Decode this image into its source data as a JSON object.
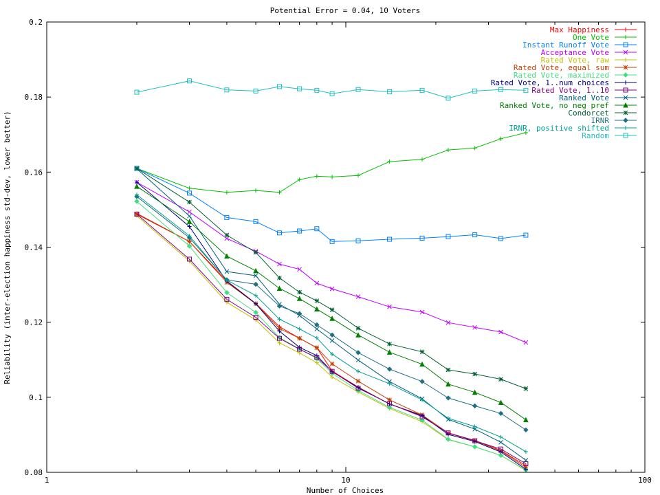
{
  "chart_data": {
    "type": "line",
    "title": "Potential Error = 0.04, 10 Voters",
    "xlabel": "Number of Choices",
    "ylabel": "Reliability (inter-election happiness std-dev, lower better)",
    "x_scale": "log",
    "xlim": [
      1,
      100
    ],
    "ylim": [
      0.08,
      0.2
    ],
    "x_ticks": [
      1,
      10,
      100
    ],
    "x_tick_labels": [
      "1",
      "10",
      "100"
    ],
    "y_ticks": [
      0.08,
      0.1,
      0.12,
      0.14,
      0.16,
      0.18,
      0.2
    ],
    "y_tick_labels": [
      "0.08",
      "0.1",
      "0.12",
      "0.14",
      "0.16",
      "0.18",
      "0.2"
    ],
    "grid": false,
    "legend_position": "top-right",
    "x": [
      2,
      3,
      4,
      5,
      6,
      7,
      8,
      9,
      11,
      14,
      18,
      22,
      27,
      33,
      40
    ],
    "series": [
      {
        "name": "Max Happiness",
        "color": "#ff0000",
        "marker": "plus",
        "values": [
          0.149,
          0.1415,
          0.131,
          0.125,
          0.1188,
          0.1157,
          0.1132,
          0.107,
          0.1027,
          0.0982,
          0.0952,
          0.0905,
          0.0885,
          0.0858,
          0.0818
        ]
      },
      {
        "name": "One Vote",
        "color": "#00c000",
        "marker": "plus",
        "values": [
          0.161,
          0.1557,
          0.1546,
          0.1551,
          0.1546,
          0.158,
          0.1589,
          0.1587,
          0.1591,
          0.1628,
          0.1634,
          0.1659,
          0.1664,
          0.1689,
          0.1705
        ]
      },
      {
        "name": "Instant Runoff Vote",
        "color": "#0080ff",
        "marker": "square",
        "values": [
          0.161,
          0.1544,
          0.1479,
          0.1468,
          0.1438,
          0.1443,
          0.1449,
          0.1415,
          0.1417,
          0.1421,
          0.1424,
          0.1428,
          0.1433,
          0.1423,
          0.1432
        ]
      },
      {
        "name": "Acceptance Vote",
        "color": "#c000ff",
        "marker": "cross",
        "values": [
          0.1573,
          0.1494,
          0.1423,
          0.1389,
          0.1355,
          0.1341,
          0.1304,
          0.1289,
          0.1268,
          0.1241,
          0.1227,
          0.1199,
          0.1186,
          0.1174,
          0.1146
        ]
      },
      {
        "name": "Rated Vote, raw",
        "color": "#c0c000",
        "marker": "plus",
        "values": [
          0.1484,
          0.1363,
          0.1253,
          0.1206,
          0.1145,
          0.1118,
          0.1092,
          0.1054,
          0.1014,
          0.097,
          0.0935,
          0.0887,
          0.0868,
          0.0845,
          0.0805
        ]
      },
      {
        "name": "Rated Vote, equal sum",
        "color": "#c04000",
        "marker": "star",
        "values": [
          0.1488,
          0.1415,
          0.1306,
          0.1249,
          0.1183,
          0.1157,
          0.1132,
          0.1089,
          0.1043,
          0.0993,
          0.0953,
          0.0904,
          0.0884,
          0.0857,
          0.0813
        ]
      },
      {
        "name": "Rated Vote, maximized",
        "color": "#40e080",
        "marker": "diamond",
        "values": [
          0.1522,
          0.1403,
          0.1279,
          0.1226,
          0.1159,
          0.1129,
          0.1103,
          0.1064,
          0.1018,
          0.0973,
          0.0939,
          0.0888,
          0.0868,
          0.0845,
          0.0806
        ]
      },
      {
        "name": "Rated Vote, 1..num choices",
        "color": "#000080",
        "marker": "plus",
        "values": [
          0.1573,
          0.1455,
          0.1309,
          0.1249,
          0.1176,
          0.1133,
          0.1111,
          0.1068,
          0.1026,
          0.0982,
          0.0951,
          0.0901,
          0.0882,
          0.0854,
          0.0808
        ]
      },
      {
        "name": "Rated Vote, 1..10",
        "color": "#800080",
        "marker": "square",
        "values": [
          0.1488,
          0.1368,
          0.1261,
          0.1213,
          0.1157,
          0.1128,
          0.1106,
          0.1069,
          0.1024,
          0.0983,
          0.0948,
          0.0905,
          0.0884,
          0.0862,
          0.0823
        ]
      },
      {
        "name": "Ranked Vote",
        "color": "#006080",
        "marker": "cross",
        "values": [
          0.1609,
          0.1483,
          0.1335,
          0.1324,
          0.1248,
          0.1218,
          0.1182,
          0.1151,
          0.1099,
          0.1042,
          0.0996,
          0.0941,
          0.0915,
          0.088,
          0.0832
        ]
      },
      {
        "name": "Ranked Vote, no neg pref",
        "color": "#008000",
        "marker": "triangle",
        "values": [
          0.1562,
          0.1468,
          0.1376,
          0.1337,
          0.129,
          0.1263,
          0.1235,
          0.121,
          0.1166,
          0.112,
          0.1088,
          0.1035,
          0.1013,
          0.0986,
          0.094
        ]
      },
      {
        "name": "Condorcet",
        "color": "#006030",
        "marker": "star",
        "values": [
          0.161,
          0.152,
          0.1432,
          0.1386,
          0.1318,
          0.128,
          0.1257,
          0.1233,
          0.1184,
          0.1142,
          0.1121,
          0.1073,
          0.1062,
          0.1048,
          0.1023
        ]
      },
      {
        "name": "IRNR",
        "color": "#207080",
        "marker": "diamond",
        "values": [
          0.1535,
          0.1425,
          0.1313,
          0.1301,
          0.1243,
          0.1223,
          0.1193,
          0.1166,
          0.1119,
          0.1075,
          0.1042,
          0.0998,
          0.0977,
          0.0957,
          0.0913
        ]
      },
      {
        "name": "IRNR, positive shifted",
        "color": "#00a090",
        "marker": "plus",
        "values": [
          0.154,
          0.143,
          0.1312,
          0.1271,
          0.1208,
          0.1182,
          0.1158,
          0.1115,
          0.1069,
          0.1036,
          0.0993,
          0.0944,
          0.0922,
          0.0894,
          0.0855
        ]
      },
      {
        "name": "Random",
        "color": "#20c0c0",
        "marker": "square",
        "values": [
          0.1813,
          0.1843,
          0.1819,
          0.1816,
          0.1828,
          0.1822,
          0.1818,
          0.1809,
          0.182,
          0.1814,
          0.1818,
          0.1797,
          0.1816,
          0.182,
          0.1818
        ]
      }
    ]
  }
}
